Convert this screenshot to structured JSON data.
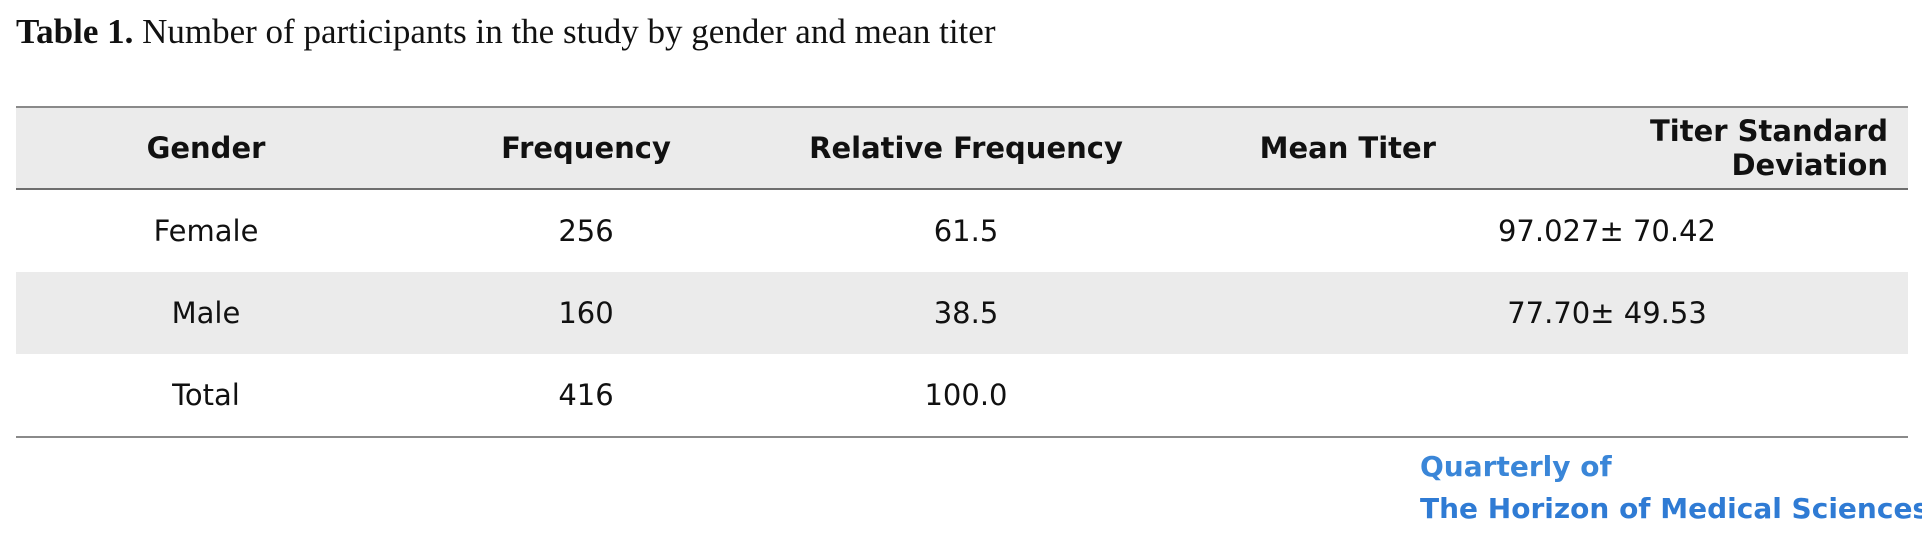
{
  "caption": {
    "label": "Table 1.",
    "text": "Number of participants in the study by gender and mean titer"
  },
  "table": {
    "headers": [
      "Gender",
      "Frequency",
      "Relative Frequency",
      "Mean Titer",
      "Titer Standard Deviation"
    ],
    "rows": [
      {
        "gender": "Female",
        "frequency": "256",
        "relative_frequency": "61.5",
        "mean_titer_sd": "97.027± 70.42"
      },
      {
        "gender": "Male",
        "frequency": "160",
        "relative_frequency": "38.5",
        "mean_titer_sd": "77.70± 49.53"
      },
      {
        "gender": "Total",
        "frequency": "416",
        "relative_frequency": "100.0",
        "mean_titer_sd": ""
      }
    ]
  },
  "logo": {
    "line1": "Quarterly of",
    "line2": "The Horizon of Medical Sciences"
  }
}
